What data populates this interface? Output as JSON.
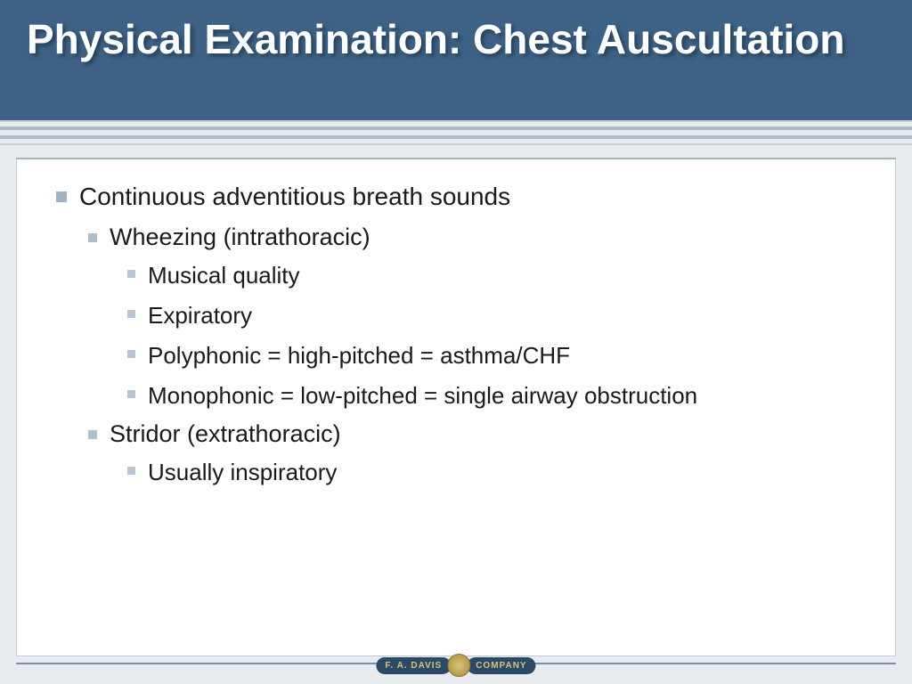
{
  "title": "Physical Examination: Chest Auscultation",
  "bullets": {
    "l1": "Continuous adventitious breath sounds",
    "l2a": "Wheezing (intrathoracic)",
    "l3a": "Musical quality",
    "l3b": "Expiratory",
    "l3c": "Polyphonic = high-pitched = asthma/CHF",
    "l3d": "Monophonic = low-pitched = single airway obstruction",
    "l2b": "Stridor (extrathoracic)",
    "l3e": "Usually inspiratory"
  },
  "footer": {
    "left": "F. A. DAVIS",
    "right": "COMPANY"
  },
  "colors": {
    "title_bg": "#3d6286",
    "title_text": "#ffffff",
    "body_bg": "#e8ecef",
    "panel_bg": "#ffffff",
    "bullet": "#9fb3c5",
    "text": "#1a1a1a",
    "footer_line": "#7a8fa3",
    "logo_bg": "#2b4a66",
    "logo_text": "#d9c27a"
  }
}
